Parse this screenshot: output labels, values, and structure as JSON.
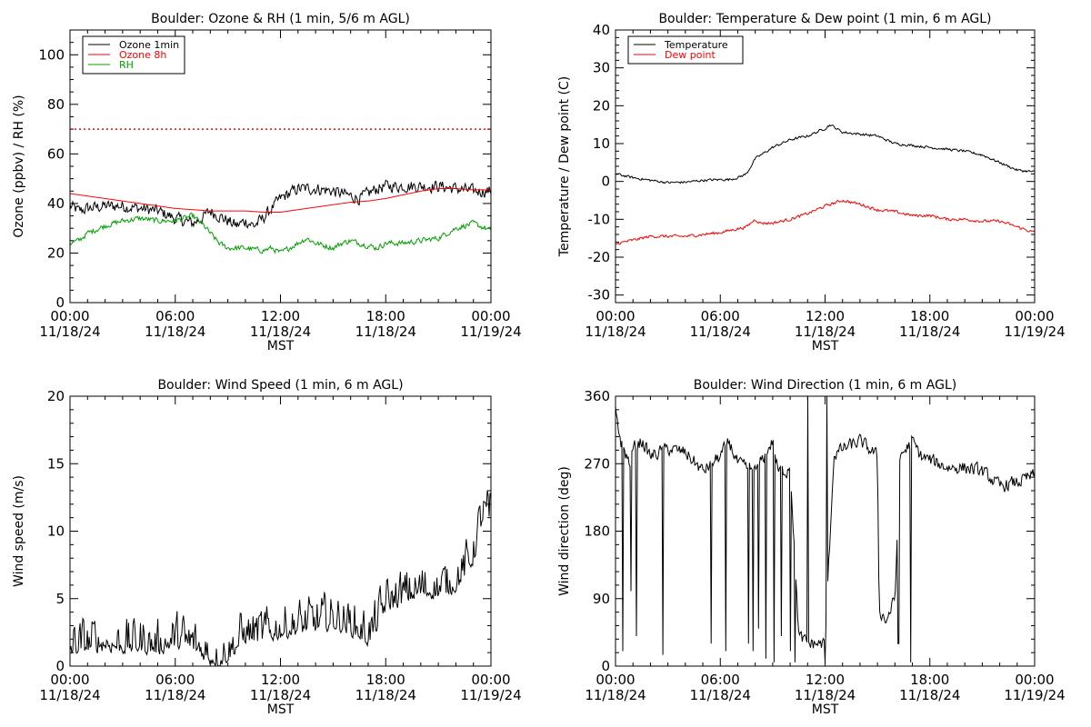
{
  "chart_data": [
    {
      "type": "line",
      "title": "Boulder: Ozone & RH (1 min, 5/6 m AGL)",
      "xlabel": "MST",
      "ylabel": "Ozone (ppbv) / RH (%)",
      "xlim": [
        0,
        24
      ],
      "ylim": [
        0,
        110
      ],
      "yticks": [
        0,
        20,
        40,
        60,
        80,
        100
      ],
      "reference_lines": [
        {
          "y": 70,
          "color": "#ff0000",
          "style": "dotted"
        }
      ],
      "legend": "top-left",
      "series": [
        {
          "name": "Ozone 1min",
          "color": "#000000",
          "noise": 2.2,
          "points": [
            [
              0,
              39
            ],
            [
              0.5,
              37
            ],
            [
              1,
              38
            ],
            [
              2,
              39
            ],
            [
              3,
              39
            ],
            [
              4,
              38
            ],
            [
              5,
              37
            ],
            [
              6,
              34
            ],
            [
              7,
              32
            ],
            [
              7.5,
              34
            ],
            [
              8,
              37
            ],
            [
              8.5,
              35
            ],
            [
              9,
              33
            ],
            [
              9.5,
              31
            ],
            [
              10,
              33
            ],
            [
              10.5,
              31
            ],
            [
              11,
              34
            ],
            [
              11.5,
              38
            ],
            [
              12,
              42
            ],
            [
              12.5,
              44
            ],
            [
              13,
              46
            ],
            [
              14,
              46
            ],
            [
              15,
              45
            ],
            [
              15.5,
              44
            ],
            [
              16,
              43
            ],
            [
              16.5,
              42
            ],
            [
              17,
              44
            ],
            [
              17.5,
              46
            ],
            [
              18,
              47
            ],
            [
              19,
              47
            ],
            [
              20,
              47
            ],
            [
              21,
              47
            ],
            [
              22,
              46
            ],
            [
              23,
              45
            ],
            [
              24,
              45
            ]
          ]
        },
        {
          "name": "Ozone 8h",
          "color": "#ff0000",
          "noise": 0,
          "points": [
            [
              0,
              44
            ],
            [
              1,
              43
            ],
            [
              2,
              42
            ],
            [
              3,
              41
            ],
            [
              4,
              40
            ],
            [
              5,
              39
            ],
            [
              6,
              38
            ],
            [
              7,
              37.5
            ],
            [
              8,
              37
            ],
            [
              9,
              37
            ],
            [
              10,
              37
            ],
            [
              11,
              36.5
            ],
            [
              12,
              36.5
            ],
            [
              13,
              37.5
            ],
            [
              14,
              38.5
            ],
            [
              15,
              39.5
            ],
            [
              16,
              40.5
            ],
            [
              17,
              41
            ],
            [
              18,
              42
            ],
            [
              19,
              43.5
            ],
            [
              20,
              45
            ],
            [
              21,
              46
            ],
            [
              22,
              46
            ],
            [
              23,
              45.5
            ],
            [
              24,
              45.5
            ]
          ]
        },
        {
          "name": "RH",
          "color": "#00a000",
          "noise": 1.0,
          "points": [
            [
              0,
              24
            ],
            [
              0.5,
              25
            ],
            [
              1,
              28
            ],
            [
              2,
              31
            ],
            [
              3,
              33
            ],
            [
              4,
              34
            ],
            [
              5,
              33
            ],
            [
              6,
              33
            ],
            [
              6.5,
              34
            ],
            [
              7,
              35
            ],
            [
              7.5,
              32
            ],
            [
              8,
              28
            ],
            [
              8.5,
              24
            ],
            [
              9,
              22
            ],
            [
              10,
              22
            ],
            [
              11,
              21
            ],
            [
              11.5,
              22
            ],
            [
              12,
              20
            ],
            [
              12.5,
              22
            ],
            [
              13,
              24
            ],
            [
              13.5,
              26
            ],
            [
              14,
              24
            ],
            [
              15,
              22
            ],
            [
              15.5,
              24
            ],
            [
              16,
              25
            ],
            [
              17,
              23
            ],
            [
              17.5,
              22
            ],
            [
              18,
              24
            ],
            [
              19,
              24
            ],
            [
              20,
              25
            ],
            [
              21,
              26
            ],
            [
              22,
              30
            ],
            [
              23,
              32
            ],
            [
              24,
              29
            ]
          ]
        }
      ]
    },
    {
      "type": "line",
      "title": "Boulder: Temperature & Dew point (1 min, 6 m AGL)",
      "xlabel": "MST",
      "ylabel": "Temperature / Dew point (C)",
      "xlim": [
        0,
        24
      ],
      "ylim": [
        -32,
        40
      ],
      "yticks": [
        -30,
        -20,
        -10,
        0,
        10,
        20,
        30,
        40
      ],
      "legend": "top-left",
      "series": [
        {
          "name": "Temperature",
          "color": "#000000",
          "noise": 0.3,
          "points": [
            [
              0,
              2
            ],
            [
              1,
              1
            ],
            [
              2,
              0.3
            ],
            [
              3,
              -0.3
            ],
            [
              4,
              -0.2
            ],
            [
              5,
              0.3
            ],
            [
              6,
              0.5
            ],
            [
              6.5,
              0.5
            ],
            [
              7,
              1
            ],
            [
              7.5,
              2
            ],
            [
              8,
              6
            ],
            [
              9,
              9
            ],
            [
              10,
              11
            ],
            [
              11,
              12
            ],
            [
              12,
              14
            ],
            [
              12.3,
              15
            ],
            [
              13,
              13
            ],
            [
              14,
              12.5
            ],
            [
              15,
              12
            ],
            [
              16,
              10
            ],
            [
              17,
              9.5
            ],
            [
              18,
              9
            ],
            [
              19,
              8.5
            ],
            [
              20,
              8
            ],
            [
              21,
              7
            ],
            [
              22,
              5
            ],
            [
              23,
              3
            ],
            [
              24,
              2.5
            ]
          ]
        },
        {
          "name": "Dew point",
          "color": "#ff0000",
          "noise": 0.35,
          "points": [
            [
              0,
              -16.5
            ],
            [
              1,
              -15.5
            ],
            [
              2,
              -14.5
            ],
            [
              3,
              -14.5
            ],
            [
              4,
              -14.5
            ],
            [
              5,
              -14
            ],
            [
              6,
              -13.5
            ],
            [
              7,
              -12.5
            ],
            [
              7.5,
              -12
            ],
            [
              8,
              -10
            ],
            [
              8.3,
              -11
            ],
            [
              9,
              -11
            ],
            [
              10,
              -10
            ],
            [
              11,
              -8.5
            ],
            [
              12,
              -6.5
            ],
            [
              13,
              -5
            ],
            [
              14,
              -6
            ],
            [
              15,
              -7.5
            ],
            [
              16,
              -8
            ],
            [
              17,
              -9
            ],
            [
              18,
              -9
            ],
            [
              19,
              -10
            ],
            [
              20,
              -10
            ],
            [
              21,
              -10.5
            ],
            [
              22,
              -10.5
            ],
            [
              23,
              -12
            ],
            [
              24,
              -13.5
            ]
          ]
        }
      ]
    },
    {
      "type": "line",
      "title": "Boulder: Wind Speed (1 min, 6 m AGL)",
      "xlabel": "MST",
      "ylabel": "Wind speed (m/s)",
      "xlim": [
        0,
        24
      ],
      "ylim": [
        0,
        20
      ],
      "yticks": [
        0,
        5,
        10,
        15,
        20
      ],
      "series": [
        {
          "name": "",
          "color": "#000000",
          "noise": 1.2,
          "floor": 0,
          "points": [
            [
              0,
              1.2
            ],
            [
              1,
              1.5
            ],
            [
              2,
              1.6
            ],
            [
              3,
              1.4
            ],
            [
              4,
              1.5
            ],
            [
              5,
              1.3
            ],
            [
              6,
              1.8
            ],
            [
              7,
              1.5
            ],
            [
              8,
              0.6
            ],
            [
              8.5,
              0.4
            ],
            [
              9,
              0.8
            ],
            [
              9.5,
              1.5
            ],
            [
              10,
              2.2
            ],
            [
              11,
              2.2
            ],
            [
              12,
              2.5
            ],
            [
              13,
              2.8
            ],
            [
              14,
              3
            ],
            [
              15,
              3.2
            ],
            [
              16,
              2.8
            ],
            [
              17,
              2
            ],
            [
              17.5,
              3
            ],
            [
              18,
              4.5
            ],
            [
              19,
              5
            ],
            [
              20,
              5.5
            ],
            [
              21,
              5.5
            ],
            [
              22,
              6
            ],
            [
              23,
              8
            ],
            [
              23.5,
              11
            ],
            [
              24,
              11
            ]
          ]
        }
      ]
    },
    {
      "type": "line",
      "title": "Boulder: Wind Direction (1 min, 6 m AGL)",
      "xlabel": "MST",
      "ylabel": "Wind direction (deg)",
      "xlim": [
        0,
        24
      ],
      "ylim": [
        0,
        360
      ],
      "yticks": [
        0,
        90,
        180,
        270,
        360
      ],
      "series": [
        {
          "name": "",
          "color": "#000000",
          "noise": 8,
          "floor": 0,
          "ceil": 360,
          "drops": [
            [
              0.1,
              330
            ],
            [
              0.4,
              20
            ],
            [
              0.9,
              100
            ],
            [
              1.2,
              40
            ],
            [
              2.7,
              15
            ],
            [
              5.5,
              30
            ],
            [
              6.3,
              20
            ],
            [
              7.6,
              30
            ],
            [
              7.9,
              20
            ],
            [
              8.2,
              50
            ],
            [
              8.6,
              10
            ],
            [
              9.1,
              5
            ],
            [
              9.5,
              40
            ],
            [
              10.0,
              20
            ],
            [
              10.3,
              5
            ],
            [
              11.0,
              360
            ],
            [
              12.0,
              5
            ],
            [
              12.1,
              360
            ],
            [
              16.2,
              30
            ],
            [
              16.9,
              5
            ]
          ],
          "points": [
            [
              0,
              340
            ],
            [
              0.3,
              300
            ],
            [
              0.8,
              270
            ],
            [
              1,
              290
            ],
            [
              1.5,
              300
            ],
            [
              2,
              280
            ],
            [
              3,
              290
            ],
            [
              4,
              285
            ],
            [
              5,
              260
            ],
            [
              6,
              280
            ],
            [
              6.5,
              300
            ],
            [
              7,
              270
            ],
            [
              8,
              260
            ],
            [
              9,
              300
            ],
            [
              9.3,
              260
            ],
            [
              9.8,
              260
            ],
            [
              10,
              270
            ],
            [
              10.5,
              40
            ],
            [
              11,
              30
            ],
            [
              11.5,
              30
            ],
            [
              12,
              30
            ],
            [
              12.5,
              280
            ],
            [
              13,
              290
            ],
            [
              14,
              300
            ],
            [
              15,
              280
            ],
            [
              15.1,
              75
            ],
            [
              15.5,
              60
            ],
            [
              16,
              90
            ],
            [
              16.3,
              280
            ],
            [
              17,
              300
            ],
            [
              17.5,
              280
            ],
            [
              18,
              275
            ],
            [
              19,
              265
            ],
            [
              20,
              265
            ],
            [
              21,
              260
            ],
            [
              22,
              240
            ],
            [
              23,
              245
            ],
            [
              24,
              255
            ]
          ]
        }
      ]
    }
  ],
  "xaxis": {
    "ticks": [
      {
        "time": "00:00",
        "date": "11/18/24"
      },
      {
        "time": "06:00",
        "date": "11/18/24"
      },
      {
        "time": "12:00",
        "date": "11/18/24"
      },
      {
        "time": "18:00",
        "date": "11/18/24"
      },
      {
        "time": "00:00",
        "date": "11/19/24"
      }
    ]
  }
}
